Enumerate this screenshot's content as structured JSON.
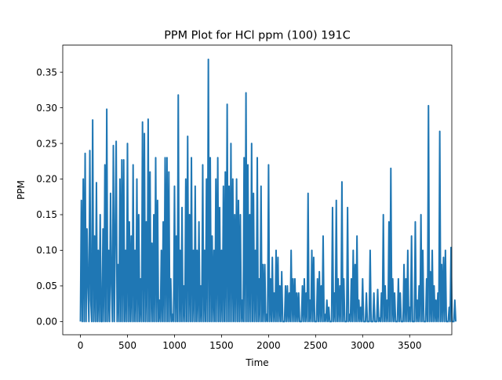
{
  "chart_data": {
    "type": "line",
    "title": "PPM Plot for HCl ppm (100) 191C",
    "xlabel": "Time",
    "ylabel": "PPM",
    "xlim": [
      -188,
      3948
    ],
    "ylim": [
      -0.0185,
      0.388
    ],
    "xticks": [
      0,
      500,
      1000,
      1500,
      2000,
      2500,
      3000,
      3500
    ],
    "xtick_labels": [
      "0",
      "500",
      "1000",
      "1500",
      "2000",
      "2500",
      "3000",
      "3500"
    ],
    "yticks": [
      0.0,
      0.05,
      0.1,
      0.15,
      0.2,
      0.25,
      0.3,
      0.35
    ],
    "ytick_labels": [
      "0.00",
      "0.05",
      "0.10",
      "0.15",
      "0.20",
      "0.25",
      "0.30",
      "0.35"
    ],
    "grid": false,
    "line_color": "#1f77b4",
    "series": [
      {
        "name": "",
        "x_start": 0,
        "x_step": 10,
        "values": [
          0.0,
          0.17,
          0.0,
          0.2,
          0.0,
          0.236,
          0.0,
          0.13,
          0.05,
          0.0,
          0.24,
          0.03,
          0.0,
          0.283,
          0.0,
          0.12,
          0.0,
          0.195,
          0.0,
          0.1,
          0.0,
          0.15,
          0.0,
          0.0,
          0.13,
          0.0,
          0.22,
          0.0,
          0.298,
          0.0,
          0.1,
          0.0,
          0.18,
          0.05,
          0.0,
          0.247,
          0.0,
          0.12,
          0.253,
          0.0,
          0.08,
          0.0,
          0.2,
          0.0,
          0.227,
          0.0,
          0.227,
          0.0,
          0.1,
          0.0,
          0.25,
          0.0,
          0.14,
          0.0,
          0.12,
          0.0,
          0.22,
          0.0,
          0.1,
          0.0,
          0.2,
          0.0,
          0.15,
          0.0,
          0.06,
          0.0,
          0.28,
          0.0,
          0.264,
          0.0,
          0.14,
          0.0,
          0.284,
          0.0,
          0.21,
          0.0,
          0.11,
          0.0,
          0.15,
          0.0,
          0.23,
          0.0,
          0.17,
          0.0,
          0.03,
          0.0,
          0.1,
          0.0,
          0.14,
          0.0,
          0.23,
          0.0,
          0.23,
          0.0,
          0.21,
          0.0,
          0.06,
          0.0,
          0.01,
          0.0,
          0.19,
          0.0,
          0.12,
          0.0,
          0.318,
          0.0,
          0.1,
          0.0,
          0.16,
          0.0,
          0.05,
          0.0,
          0.2,
          0.0,
          0.26,
          0.0,
          0.15,
          0.0,
          0.23,
          0.0,
          0.1,
          0.0,
          0.19,
          0.0,
          0.1,
          0.0,
          0.14,
          0.0,
          0.05,
          0.0,
          0.22,
          0.0,
          0.1,
          0.0,
          0.2,
          0.0,
          0.368,
          0.0,
          0.23,
          0.0,
          0.12,
          0.0,
          0.1,
          0.0,
          0.2,
          0.0,
          0.23,
          0.0,
          0.16,
          0.0,
          0.1,
          0.0,
          0.19,
          0.0,
          0.21,
          0.0,
          0.305,
          0.0,
          0.19,
          0.0,
          0.25,
          0.0,
          0.2,
          0.0,
          0.15,
          0.0,
          0.2,
          0.0,
          0.17,
          0.0,
          0.15,
          0.0,
          0.03,
          0.0,
          0.23,
          0.0,
          0.321,
          0.0,
          0.22,
          0.0,
          0.15,
          0.0,
          0.25,
          0.0,
          0.18,
          0.0,
          0.1,
          0.0,
          0.23,
          0.0,
          0.06,
          0.0,
          0.19,
          0.0,
          0.08,
          0.0,
          0.08,
          0.0,
          0.01,
          0.0,
          0.22,
          0.0,
          0.06,
          0.0,
          0.09,
          0.0,
          0.04,
          0.0,
          0.1,
          0.0,
          0.09,
          0.0,
          0.05,
          0.0,
          0.07,
          0.0,
          0.0,
          0.0,
          0.05,
          0.0,
          0.05,
          0.0,
          0.04,
          0.0,
          0.1,
          0.0,
          0.06,
          0.0,
          0.06,
          0.0,
          0.04,
          0.0,
          0.04,
          0.0,
          0.0,
          0.0,
          0.05,
          0.0,
          0.06,
          0.0,
          0.04,
          0.0,
          0.18,
          0.0,
          0.03,
          0.0,
          0.1,
          0.0,
          0.09,
          0.0,
          0.0,
          0.0,
          0.06,
          0.0,
          0.07,
          0.0,
          0.05,
          0.0,
          0.12,
          0.0,
          0.01,
          0.0,
          0.03,
          0.0,
          0.02,
          0.0,
          0.0,
          0.0,
          0.16,
          0.0,
          0.04,
          0.0,
          0.17,
          0.0,
          0.06,
          0.0,
          0.05,
          0.0,
          0.196,
          0.0,
          0.06,
          0.0,
          0.0,
          0.0,
          0.16,
          0.0,
          0.01,
          0.0,
          0.06,
          0.0,
          0.1,
          0.0,
          0.08,
          0.0,
          0.12,
          0.0,
          0.03,
          0.0,
          0.02,
          0.0,
          0.06,
          0.0,
          0.0,
          0.0,
          0.04,
          0.0,
          0.0,
          0.0,
          0.1,
          0.0,
          0.0,
          0.0,
          0.04,
          0.0,
          0.0,
          0.0,
          0.045,
          0.0,
          0.005,
          0.0,
          0.04,
          0.0,
          0.15,
          0.0,
          0.05,
          0.0,
          0.03,
          0.0,
          0.14,
          0.0,
          0.215,
          0.0,
          0.06,
          0.0,
          0.04,
          0.0,
          0.0,
          0.0,
          0.06,
          0.0,
          0.04,
          0.0,
          0.0,
          0.0,
          0.08,
          0.0,
          0.06,
          0.0,
          0.1,
          0.0,
          0.02,
          0.0,
          0.12,
          0.0,
          0.0,
          0.0,
          0.14,
          0.0,
          0.03,
          0.0,
          0.05,
          0.0,
          0.15,
          0.0,
          0.1,
          0.0,
          0.0,
          0.0,
          0.06,
          0.0,
          0.303,
          0.0,
          0.07,
          0.0,
          0.1,
          0.0,
          0.05,
          0.0,
          0.03,
          0.0,
          0.04,
          0.0,
          0.267,
          0.0,
          0.08,
          0.0,
          0.09,
          0.0,
          0.1,
          0.0,
          0.0,
          0.0,
          0.02,
          0.0,
          0.104,
          0.0,
          0.0,
          0.0,
          0.03,
          0.0
        ]
      }
    ]
  }
}
